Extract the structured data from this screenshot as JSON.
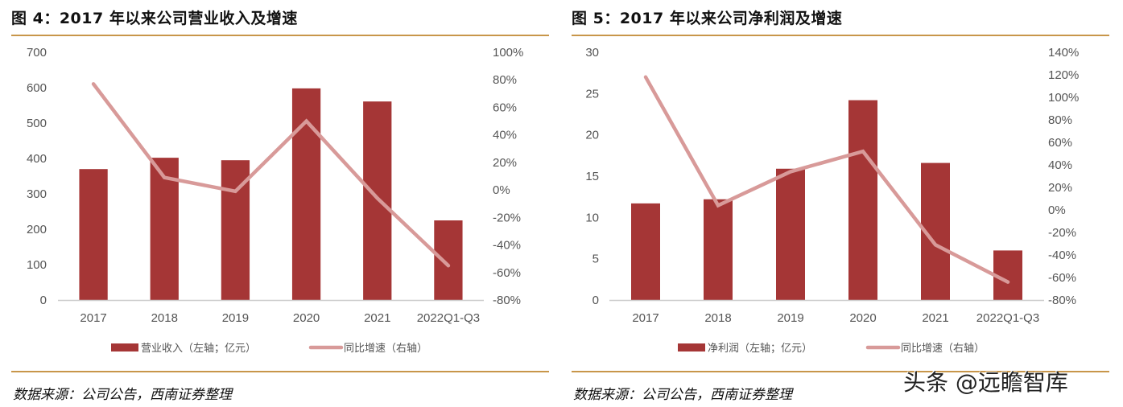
{
  "colors": {
    "bar": "#a53636",
    "line": "#d89a99",
    "axis": "#cccccc",
    "rule": "#c8964a"
  },
  "watermark": "头条 @远瞻智库",
  "chart_data": [
    {
      "type": "bar",
      "title": "图 4：2017 年以来公司营业收入及增速",
      "categories": [
        "2017",
        "2018",
        "2019",
        "2020",
        "2021",
        "2022Q1-Q3"
      ],
      "series": [
        {
          "name": "营业收入（左轴；亿元）",
          "type": "bar",
          "axis": "left",
          "values": [
            370,
            402,
            395,
            598,
            561,
            225
          ]
        },
        {
          "name": "同比增速（右轴）",
          "type": "line",
          "axis": "right",
          "values": [
            77,
            9,
            -1,
            50,
            -6,
            -55
          ]
        }
      ],
      "ylim": [
        0,
        700
      ],
      "yticks": [
        "0",
        "100",
        "200",
        "300",
        "400",
        "500",
        "600",
        "700"
      ],
      "y2lim": [
        -80,
        100
      ],
      "y2ticks": [
        "-80%",
        "-60%",
        "-40%",
        "-20%",
        "0%",
        "20%",
        "40%",
        "60%",
        "80%",
        "100%"
      ],
      "legend": "bottom",
      "grid": false,
      "source": "数据来源：公司公告，西南证券整理"
    },
    {
      "type": "bar",
      "title": "图 5：2017 年以来公司净利润及增速",
      "categories": [
        "2017",
        "2018",
        "2019",
        "2020",
        "2021",
        "2022Q1-Q3"
      ],
      "series": [
        {
          "name": "净利润（左轴；亿元）",
          "type": "bar",
          "axis": "left",
          "values": [
            11.7,
            12.2,
            15.9,
            24.2,
            16.6,
            6.0
          ]
        },
        {
          "name": "同比增速（右轴）",
          "type": "line",
          "axis": "right",
          "values": [
            118,
            4,
            34,
            52,
            -31,
            -64
          ]
        }
      ],
      "ylim": [
        0,
        30
      ],
      "yticks": [
        "0",
        "5",
        "10",
        "15",
        "20",
        "25",
        "30"
      ],
      "y2lim": [
        -80,
        140
      ],
      "y2ticks": [
        "-80%",
        "-60%",
        "-40%",
        "-20%",
        "0%",
        "20%",
        "40%",
        "60%",
        "80%",
        "100%",
        "120%",
        "140%"
      ],
      "legend": "bottom",
      "grid": false,
      "source": "数据来源：公司公告，西南证券整理"
    }
  ]
}
